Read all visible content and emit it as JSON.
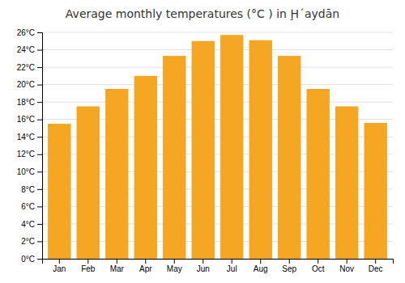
{
  "chart_data": {
    "type": "bar",
    "title": "Average monthly temperatures (°C ) in Ḩˊaydān",
    "categories": [
      "Jan",
      "Feb",
      "Mar",
      "Apr",
      "May",
      "Jun",
      "Jul",
      "Aug",
      "Sep",
      "Oct",
      "Nov",
      "Dec"
    ],
    "values": [
      15.5,
      17.5,
      19.5,
      21.0,
      23.3,
      25.0,
      25.7,
      25.1,
      23.3,
      19.5,
      17.5,
      15.6
    ],
    "color": "#F5A623",
    "ylim": [
      0,
      26
    ],
    "yticks": [
      {
        "value": 0,
        "label": "0°C"
      },
      {
        "value": 2,
        "label": "2°C"
      },
      {
        "value": 4,
        "label": "4°C"
      },
      {
        "value": 6,
        "label": "6°C"
      },
      {
        "value": 8,
        "label": "8°C"
      },
      {
        "value": 10,
        "label": "10°C"
      },
      {
        "value": 12,
        "label": "12°C"
      },
      {
        "value": 14,
        "label": "14°C"
      },
      {
        "value": 16,
        "label": "16°C"
      },
      {
        "value": 18,
        "label": "18°C"
      },
      {
        "value": 20,
        "label": "20°C"
      },
      {
        "value": 22,
        "label": "22°C"
      },
      {
        "value": 24,
        "label": "24°C"
      },
      {
        "value": 26,
        "label": "26°C"
      }
    ],
    "grid": true
  }
}
